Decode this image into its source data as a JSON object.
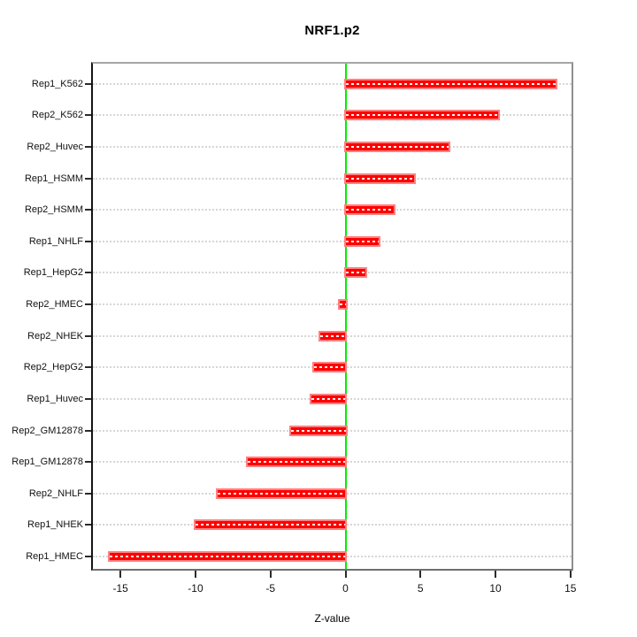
{
  "chart_data": {
    "type": "bar",
    "orientation": "horizontal",
    "title": "NRF1.p2",
    "xlabel": "Z-value",
    "ylabel": "",
    "categories": [
      "Rep1_K562",
      "Rep2_K562",
      "Rep2_Huvec",
      "Rep1_HSMM",
      "Rep2_HSMM",
      "Rep1_NHLF",
      "Rep1_HepG2",
      "Rep2_HMEC",
      "Rep2_NHEK",
      "Rep2_HepG2",
      "Rep1_Huvec",
      "Rep2_GM12878",
      "Rep1_GM12878",
      "Rep2_NHLF",
      "Rep1_NHEK",
      "Rep1_HMEC"
    ],
    "values": [
      14.0,
      10.2,
      6.9,
      4.6,
      3.2,
      2.2,
      1.3,
      -0.4,
      -1.7,
      -2.1,
      -2.3,
      -3.6,
      -6.5,
      -8.5,
      -10.0,
      -15.7
    ],
    "xlim": [
      -16.84,
      15.07
    ],
    "xticks": [
      -15,
      -10,
      -5,
      0,
      5,
      10,
      15
    ],
    "zero_reference_line": 0,
    "grid": "horizontal dotted line per category",
    "legend": "none",
    "colors": {
      "bar_fill": "#ff0000",
      "bar_border": "#ff8080",
      "bar_center_dash": "#ffffff",
      "zero_line": "#00ee00",
      "gridline": "#d6d6d6",
      "axis_text": "#111111",
      "panel_border": "#8f8f8f"
    }
  }
}
